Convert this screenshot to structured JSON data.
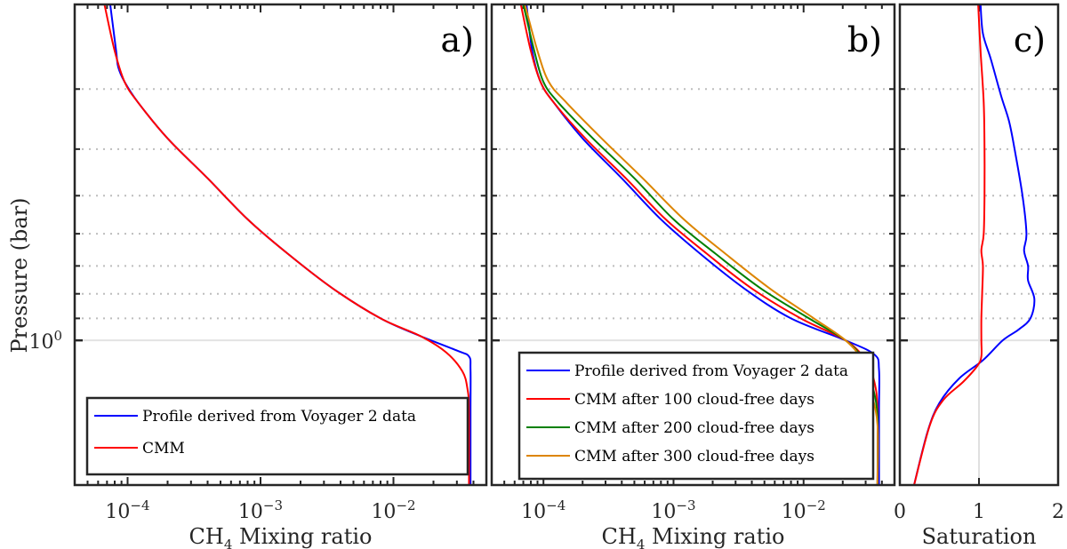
{
  "chart_data": {
    "type": "line",
    "shared_ylabel": "Pressure (bar)",
    "y_axis": {
      "scale": "log",
      "reversed": true,
      "ylim": [
        0.2,
        2.0
      ],
      "major_ticks": [
        1
      ],
      "tick_labels": [
        "10^0"
      ],
      "minor_grid": [
        0.3,
        0.4,
        0.5,
        0.6,
        0.7,
        0.8,
        0.9
      ],
      "grid": "dotted minor, solid major"
    },
    "panels": [
      {
        "id": "a",
        "panel_label": "a)",
        "xlabel": "CH4 Mixing ratio",
        "xlabel_main": "CH",
        "xlabel_sub": "4",
        "xlabel_rest": " Mixing ratio",
        "x_axis": {
          "scale": "log",
          "xlim": [
            4e-05,
            0.05
          ],
          "tick_values": [
            0.0001,
            0.001,
            0.01
          ],
          "tick_labels": [
            "10^-4",
            "10^-3",
            "10^-2"
          ]
        },
        "legend": {
          "location": "bottom-left",
          "entries": [
            "Profile derived from Voyager 2 data",
            "CMM"
          ]
        },
        "series": [
          {
            "name": "Profile derived from Voyager 2 data",
            "color": "#0000ff",
            "points": [
              [
                7.4e-05,
                0.2
              ],
              [
                8.2e-05,
                0.25
              ],
              [
                8.5e-05,
                0.27
              ],
              [
                9.5e-05,
                0.29
              ],
              [
                0.00012,
                0.32
              ],
              [
                0.0002,
                0.38
              ],
              [
                0.0004,
                0.46
              ],
              [
                0.0008,
                0.56
              ],
              [
                0.0016,
                0.66
              ],
              [
                0.0035,
                0.78
              ],
              [
                0.008,
                0.9
              ],
              [
                0.016,
                0.98
              ],
              [
                0.03,
                1.05
              ],
              [
                0.037,
                1.08
              ],
              [
                0.038,
                1.15
              ],
              [
                0.038,
                1.4
              ],
              [
                0.038,
                2.0
              ]
            ]
          },
          {
            "name": "CMM",
            "color": "#ff0000",
            "points": [
              [
                6.7e-05,
                0.2
              ],
              [
                8e-05,
                0.25
              ],
              [
                9.5e-05,
                0.29
              ],
              [
                0.00012,
                0.32
              ],
              [
                0.0002,
                0.38
              ],
              [
                0.0004,
                0.46
              ],
              [
                0.0008,
                0.56
              ],
              [
                0.0016,
                0.66
              ],
              [
                0.0035,
                0.78
              ],
              [
                0.008,
                0.9
              ],
              [
                0.016,
                0.98
              ],
              [
                0.025,
                1.06
              ],
              [
                0.033,
                1.16
              ],
              [
                0.036,
                1.26
              ],
              [
                0.037,
                1.4
              ],
              [
                0.037,
                2.0
              ]
            ]
          }
        ]
      },
      {
        "id": "b",
        "panel_label": "b)",
        "xlabel": "CH4 Mixing ratio",
        "xlabel_main": "CH",
        "xlabel_sub": "4",
        "xlabel_rest": " Mixing ratio",
        "x_axis": {
          "scale": "log",
          "xlim": [
            4e-05,
            0.05
          ],
          "tick_values": [
            0.0001,
            0.001,
            0.01
          ],
          "tick_labels": [
            "10^-4",
            "10^-3",
            "10^-2"
          ]
        },
        "legend": {
          "location": "bottom-left",
          "entries": [
            "Profile derived from Voyager 2 data",
            "CMM after 100 cloud-free days",
            "CMM after 200 cloud-free days",
            "CMM after 300 cloud-free days"
          ]
        },
        "series": [
          {
            "name": "Profile derived from Voyager 2 data",
            "color": "#0000ff",
            "points": [
              [
                7.4e-05,
                0.2
              ],
              [
                8.2e-05,
                0.25
              ],
              [
                9.5e-05,
                0.29
              ],
              [
                0.00012,
                0.32
              ],
              [
                0.0002,
                0.38
              ],
              [
                0.0004,
                0.46
              ],
              [
                0.0008,
                0.56
              ],
              [
                0.0016,
                0.66
              ],
              [
                0.0035,
                0.78
              ],
              [
                0.008,
                0.9
              ],
              [
                0.021,
                1.0
              ],
              [
                0.035,
                1.07
              ],
              [
                0.038,
                1.15
              ],
              [
                0.038,
                1.4
              ],
              [
                0.038,
                2.0
              ]
            ]
          },
          {
            "name": "CMM after 100 cloud-free days",
            "color": "#ff0000",
            "points": [
              [
                6.7e-05,
                0.2
              ],
              [
                8e-05,
                0.25
              ],
              [
                9.5e-05,
                0.29
              ],
              [
                0.00012,
                0.32
              ],
              [
                0.00021,
                0.38
              ],
              [
                0.00043,
                0.46
              ],
              [
                0.00087,
                0.56
              ],
              [
                0.0018,
                0.66
              ],
              [
                0.004,
                0.78
              ],
              [
                0.0095,
                0.9
              ],
              [
                0.021,
                1.0
              ],
              [
                0.03,
                1.1
              ],
              [
                0.035,
                1.22
              ],
              [
                0.037,
                1.4
              ],
              [
                0.037,
                2.0
              ]
            ]
          },
          {
            "name": "CMM after 200 cloud-free days",
            "color": "#008000",
            "points": [
              [
                7e-05,
                0.2
              ],
              [
                8.5e-05,
                0.25
              ],
              [
                0.0001,
                0.29
              ],
              [
                0.00013,
                0.32
              ],
              [
                0.00024,
                0.38
              ],
              [
                0.0005,
                0.46
              ],
              [
                0.001,
                0.56
              ],
              [
                0.0021,
                0.66
              ],
              [
                0.0047,
                0.78
              ],
              [
                0.011,
                0.9
              ],
              [
                0.021,
                1.0
              ],
              [
                0.029,
                1.1
              ],
              [
                0.034,
                1.25
              ],
              [
                0.037,
                1.45
              ],
              [
                0.037,
                2.0
              ]
            ]
          },
          {
            "name": "CMM after 300 cloud-free days",
            "color": "#dd8500",
            "points": [
              [
                7.2e-05,
                0.2
              ],
              [
                9e-05,
                0.25
              ],
              [
                0.00011,
                0.29
              ],
              [
                0.00015,
                0.32
              ],
              [
                0.00028,
                0.38
              ],
              [
                0.00058,
                0.46
              ],
              [
                0.0012,
                0.56
              ],
              [
                0.0025,
                0.66
              ],
              [
                0.0055,
                0.78
              ],
              [
                0.012,
                0.9
              ],
              [
                0.021,
                1.0
              ],
              [
                0.028,
                1.1
              ],
              [
                0.033,
                1.28
              ],
              [
                0.037,
                1.5
              ],
              [
                0.037,
                2.0
              ]
            ]
          }
        ]
      },
      {
        "id": "c",
        "panel_label": "c)",
        "xlabel": "Saturation",
        "x_axis": {
          "scale": "linear",
          "xlim": [
            0,
            2
          ],
          "tick_values": [
            0,
            1,
            2
          ],
          "tick_labels": [
            "0",
            "1",
            "2"
          ]
        },
        "series": [
          {
            "name": "Profile derived from Voyager 2 data",
            "color": "#0000ff",
            "points": [
              [
                1.02,
                0.2
              ],
              [
                1.05,
                0.23
              ],
              [
                1.15,
                0.26
              ],
              [
                1.28,
                0.31
              ],
              [
                1.38,
                0.35
              ],
              [
                1.45,
                0.4
              ],
              [
                1.55,
                0.5
              ],
              [
                1.6,
                0.6
              ],
              [
                1.57,
                0.65
              ],
              [
                1.62,
                0.7
              ],
              [
                1.62,
                0.75
              ],
              [
                1.7,
                0.82
              ],
              [
                1.65,
                0.9
              ],
              [
                1.5,
                0.95
              ],
              [
                1.3,
                1.0
              ],
              [
                1.05,
                1.1
              ],
              [
                0.75,
                1.2
              ],
              [
                0.5,
                1.35
              ],
              [
                0.35,
                1.55
              ],
              [
                0.18,
                2.0
              ]
            ]
          },
          {
            "name": "CMM",
            "color": "#ff0000",
            "points": [
              [
                0.99,
                0.2
              ],
              [
                1.02,
                0.25
              ],
              [
                1.06,
                0.32
              ],
              [
                1.07,
                0.4
              ],
              [
                1.07,
                0.5
              ],
              [
                1.06,
                0.6
              ],
              [
                1.03,
                0.65
              ],
              [
                1.05,
                0.7
              ],
              [
                1.04,
                0.8
              ],
              [
                1.03,
                0.9
              ],
              [
                1.03,
                1.0
              ],
              [
                1.03,
                1.08
              ],
              [
                0.98,
                1.13
              ],
              [
                0.8,
                1.22
              ],
              [
                0.55,
                1.33
              ],
              [
                0.38,
                1.5
              ],
              [
                0.18,
                2.0
              ]
            ]
          }
        ],
        "reference_line": {
          "x": 1
        }
      }
    ]
  }
}
